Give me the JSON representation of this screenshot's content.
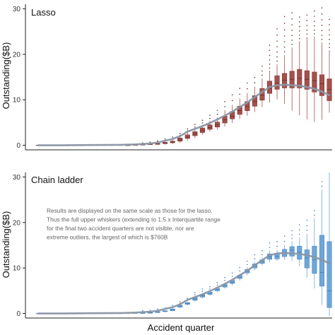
{
  "figure": {
    "xlabel": "Accident quarter",
    "ylabel": "Outstanding($B)"
  },
  "colors": {
    "lasso_fill": "#a4504c",
    "lasso_edge": "#6e2a27",
    "chain_fill": "#6fa6d6",
    "chain_edge": "#3d7fbf",
    "trend": "#8a96a6"
  },
  "chart_data": [
    {
      "type": "box",
      "panel_label": "Lasso",
      "xlabel": "Accident quarter",
      "ylabel": "Outstanding($B)",
      "xlim": [
        1,
        40
      ],
      "ylim": [
        -1,
        31
      ],
      "yticks": [
        0,
        10,
        20,
        30
      ],
      "grid": false,
      "x": [
        1,
        2,
        3,
        4,
        5,
        6,
        7,
        8,
        9,
        10,
        11,
        12,
        13,
        14,
        15,
        16,
        17,
        18,
        19,
        20,
        21,
        22,
        23,
        24,
        25,
        26,
        27,
        28,
        29,
        30,
        31,
        32,
        33,
        34,
        35,
        36,
        37,
        38,
        39,
        40
      ],
      "median": [
        0,
        0,
        0,
        0,
        0,
        0,
        0,
        0,
        0,
        0,
        0,
        0,
        0.05,
        0.1,
        0.15,
        0.2,
        0.3,
        0.5,
        0.7,
        1.2,
        1.8,
        2.5,
        3.3,
        3.9,
        4.5,
        5.6,
        6.4,
        7.6,
        8.5,
        9.6,
        11,
        12.5,
        13.7,
        14.3,
        14.5,
        14.7,
        14.5,
        14.2,
        13.5,
        12.3
      ],
      "q1": [
        0,
        0,
        0,
        0,
        0,
        0,
        0,
        0,
        0,
        0,
        0,
        0,
        0.03,
        0.06,
        0.1,
        0.15,
        0.2,
        0.35,
        0.55,
        0.9,
        1.5,
        2.1,
        2.8,
        3.5,
        4.0,
        4.9,
        5.8,
        6.8,
        7.6,
        8.6,
        9.9,
        11.4,
        12.3,
        12.6,
        12.6,
        12.6,
        12.3,
        11.7,
        10.9,
        9.8
      ],
      "q3": [
        0,
        0,
        0,
        0,
        0,
        0,
        0,
        0,
        0,
        0,
        0,
        0,
        0.07,
        0.13,
        0.2,
        0.3,
        0.4,
        0.65,
        0.9,
        1.6,
        2.3,
        3.0,
        3.8,
        4.5,
        5.1,
        6.4,
        7.4,
        8.6,
        9.6,
        10.9,
        12.5,
        14.1,
        15.3,
        15.8,
        16.3,
        16.7,
        16.4,
        16.1,
        15.5,
        14.6
      ],
      "whisker_low": [
        0,
        0,
        0,
        0,
        0,
        0,
        0,
        0,
        0,
        0,
        0,
        0,
        0,
        0,
        0.05,
        0.08,
        0.1,
        0.15,
        0.3,
        0.5,
        1.0,
        1.6,
        2.3,
        3.0,
        3.4,
        4.1,
        4.9,
        5.8,
        6.5,
        7.3,
        8.4,
        9.4,
        10.1,
        9.1,
        7.6,
        6.6,
        5.7,
        5.1,
        5.6,
        7.2
      ],
      "whisker_high": [
        0,
        0,
        0,
        0,
        0,
        0,
        0,
        0,
        0,
        0,
        0,
        0,
        0.1,
        0.2,
        0.3,
        0.4,
        0.6,
        0.9,
        1.2,
        1.9,
        2.9,
        3.6,
        4.5,
        5.4,
        6.1,
        7.7,
        8.9,
        10.3,
        11.5,
        12.9,
        14.7,
        16.4,
        17.8,
        19.8,
        21.5,
        22.9,
        23.8,
        23.9,
        22.6,
        20.9
      ],
      "outliers_max": [
        0,
        0,
        0,
        0,
        0,
        0,
        0,
        0,
        0,
        0,
        0,
        0,
        0,
        0,
        0.5,
        0.7,
        1.0,
        1.4,
        1.8,
        2.6,
        3.6,
        4.6,
        5.5,
        6.6,
        7.7,
        9.6,
        11.1,
        12.5,
        13.7,
        14.9,
        17.4,
        22.0,
        25.6,
        28.3,
        29.1,
        28.2,
        28.6,
        29.5,
        30.2,
        27.7
      ],
      "trend": {
        "x": [
          1,
          4,
          8,
          12,
          14,
          16,
          17,
          18,
          19,
          20,
          21,
          22,
          23,
          24,
          25,
          26,
          27,
          28,
          29,
          30,
          31,
          32,
          33,
          34,
          35,
          36,
          37,
          38,
          39,
          40
        ],
        "y": [
          0,
          0,
          0.05,
          0.1,
          0.2,
          0.4,
          0.6,
          1.0,
          1.4,
          2.0,
          3.0,
          3.6,
          4.2,
          4.9,
          5.7,
          6.5,
          7.4,
          8.4,
          9.4,
          10.6,
          11.7,
          12.8,
          13.2,
          13.3,
          13.2,
          13.1,
          12.8,
          12.4,
          11.8,
          11.0
        ]
      }
    },
    {
      "type": "box",
      "panel_label": "Chain ladder",
      "xlabel": "Accident quarter",
      "ylabel": "Outstanding($B)",
      "xlim": [
        1,
        40
      ],
      "ylim": [
        -1,
        31
      ],
      "yticks": [
        0,
        10,
        20,
        30
      ],
      "grid": false,
      "annotation": [
        "Results are displayed on the same scale as those for the lasso.",
        "Thus the full upper whiskers (extending to 1.5 x Interquartile range",
        "for the final two accident quarters are not visible, nor are",
        "extreme outliers, the largest of which is $760B"
      ],
      "x": [
        1,
        2,
        3,
        4,
        5,
        6,
        7,
        8,
        9,
        10,
        11,
        12,
        13,
        14,
        15,
        16,
        17,
        18,
        19,
        20,
        21,
        22,
        23,
        24,
        25,
        26,
        27,
        28,
        29,
        30,
        31,
        32,
        33,
        34,
        35,
        36,
        37,
        38,
        39,
        40
      ],
      "median": [
        0,
        0,
        0,
        0,
        0,
        0,
        0,
        0,
        0,
        0,
        0,
        0,
        0,
        0,
        0.1,
        0.15,
        0.3,
        0.5,
        0.8,
        1.6,
        2.2,
        3.2,
        3.9,
        4.4,
        5.2,
        6.1,
        6.9,
        8.0,
        9.2,
        10.4,
        11.4,
        12.4,
        12.6,
        13.3,
        13.9,
        13.5,
        12.2,
        11.8,
        9.0,
        5.0
      ],
      "q1": [
        0,
        0,
        0,
        0,
        0,
        0,
        0,
        0,
        0,
        0,
        0,
        0,
        0,
        0,
        0.05,
        0.1,
        0.2,
        0.4,
        0.6,
        1.4,
        2.0,
        2.9,
        3.6,
        4.2,
        5.0,
        5.8,
        6.6,
        7.7,
        8.9,
        10.0,
        11.0,
        11.9,
        12.0,
        12.5,
        12.6,
        11.9,
        10.0,
        8.8,
        6.0,
        1.3
      ],
      "q3": [
        0,
        0,
        0,
        0,
        0,
        0,
        0,
        0,
        0,
        0,
        0,
        0,
        0,
        0,
        0.15,
        0.2,
        0.4,
        0.6,
        1.0,
        1.8,
        2.4,
        3.5,
        4.2,
        4.7,
        5.5,
        6.4,
        7.3,
        8.4,
        9.7,
        10.9,
        11.8,
        13.1,
        13.2,
        14.1,
        14.7,
        14.8,
        14.0,
        14.8,
        17.2,
        15.8
      ],
      "whisker_low": [
        0,
        0,
        0,
        0,
        0,
        0,
        0,
        0,
        0,
        0,
        0,
        0,
        0,
        0,
        0,
        0.05,
        0.1,
        0.3,
        0.5,
        1.2,
        1.8,
        2.6,
        3.3,
        3.9,
        4.7,
        5.5,
        6.2,
        7.2,
        8.4,
        9.5,
        10.5,
        11.3,
        11.5,
        11.8,
        11.5,
        10.4,
        7.9,
        5.5,
        1.9,
        -0.6
      ],
      "whisker_high": [
        0,
        0,
        0,
        0,
        0,
        0,
        0,
        0,
        0,
        0,
        0,
        0,
        0,
        0,
        0.2,
        0.25,
        0.5,
        0.7,
        1.2,
        2.0,
        2.6,
        3.8,
        4.5,
        5.0,
        5.8,
        6.8,
        7.7,
        8.8,
        10.2,
        11.4,
        12.3,
        13.8,
        14.0,
        15.0,
        15.9,
        16.7,
        17.5,
        20.9,
        27.2,
        31.0
      ],
      "outliers_max": [
        0,
        0,
        0,
        0,
        0,
        0,
        0,
        0,
        0,
        0,
        0,
        0,
        0,
        0,
        0.6,
        0.7,
        1.0,
        1.2,
        1.8,
        2.6,
        3.3,
        4.6,
        5.4,
        5.9,
        6.8,
        7.9,
        8.9,
        10.1,
        11.5,
        12.9,
        13.8,
        15.5,
        15.8,
        17.0,
        18.2,
        19.5,
        20.5,
        22.6,
        29.0,
        31.0
      ],
      "trend": {
        "x": [
          1,
          4,
          8,
          12,
          14,
          16,
          17,
          18,
          19,
          20,
          21,
          22,
          23,
          24,
          25,
          26,
          27,
          28,
          29,
          30,
          31,
          32,
          33,
          34,
          35,
          36,
          37,
          38,
          39,
          40
        ],
        "y": [
          0,
          0,
          0.05,
          0.1,
          0.2,
          0.4,
          0.6,
          1.0,
          1.4,
          2.0,
          3.0,
          3.6,
          4.2,
          4.9,
          5.7,
          6.5,
          7.4,
          8.4,
          9.4,
          10.6,
          11.7,
          12.8,
          13.2,
          13.3,
          13.2,
          13.1,
          12.8,
          12.4,
          11.8,
          11.0
        ]
      }
    }
  ]
}
